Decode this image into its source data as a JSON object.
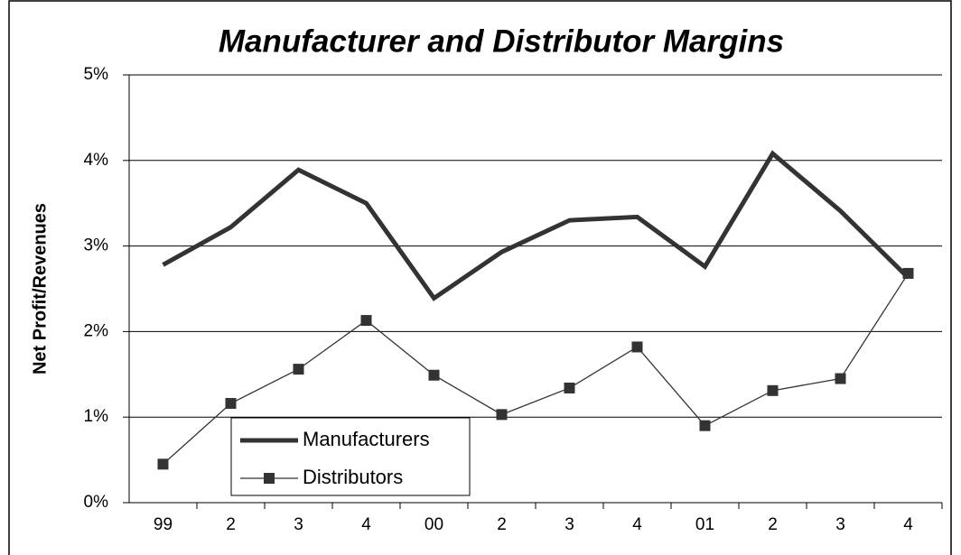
{
  "chart_data": {
    "type": "line",
    "title": "Manufacturer and Distributor Margins",
    "y_label": "Net Profit/Revenues",
    "categories": [
      "99",
      "2",
      "3",
      "4",
      "00",
      "2",
      "3",
      "4",
      "01",
      "2",
      "3",
      "4"
    ],
    "series": [
      {
        "name": "Manufacturers",
        "color": "#333333",
        "values": [
          2.78,
          3.22,
          3.89,
          3.5,
          2.39,
          2.93,
          3.3,
          3.34,
          2.76,
          4.08,
          3.41,
          2.63
        ]
      },
      {
        "name": "Distributors",
        "color": "#333333",
        "marker": "square",
        "values": [
          0.45,
          1.16,
          1.56,
          2.13,
          1.49,
          1.03,
          1.34,
          1.82,
          0.9,
          1.31,
          1.45,
          2.68
        ]
      }
    ],
    "ylim": [
      0,
      5
    ],
    "yticks": [
      {
        "value": 0,
        "label": "0%"
      },
      {
        "value": 1,
        "label": "1%"
      },
      {
        "value": 2,
        "label": "2%"
      },
      {
        "value": 3,
        "label": "3%"
      },
      {
        "value": 4,
        "label": "4%"
      },
      {
        "value": 5,
        "label": "5%"
      }
    ],
    "grid": true,
    "legend": "lower-left"
  }
}
